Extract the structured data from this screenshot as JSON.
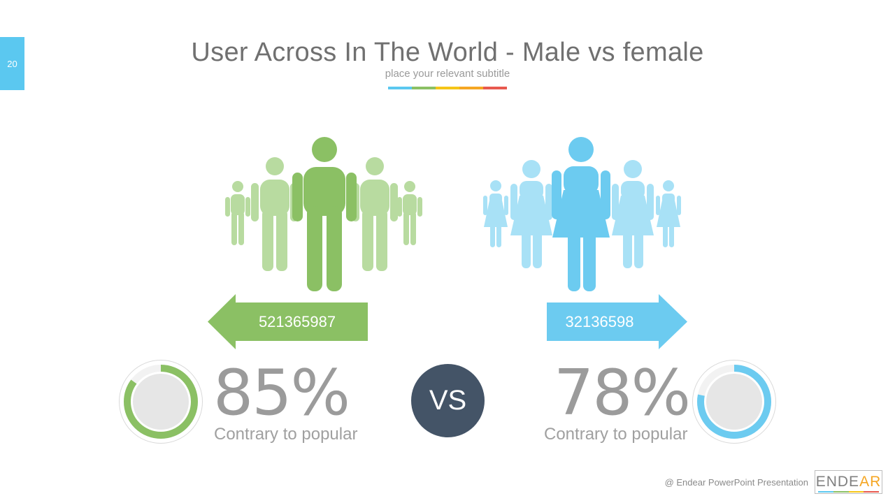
{
  "slide": {
    "page_number": "20"
  },
  "header": {
    "title": "User Across In The World - Male vs female",
    "subtitle": "place your relevant subtitle",
    "bar_colors": [
      "#5bc8f0",
      "#8bc064",
      "#f5c518",
      "#f5a623",
      "#e8594f"
    ]
  },
  "male": {
    "count": "521365987",
    "percent": "85%",
    "percent_value": 85,
    "caption": "Contrary to popular",
    "color_dark": "#8bc064",
    "color_light": "#b8dba0"
  },
  "female": {
    "count": "32136598",
    "percent": "78%",
    "percent_value": 78,
    "caption": "Contrary to popular",
    "color_dark": "#6ccbf0",
    "color_light": "#a8e1f6"
  },
  "vs_label": "VS",
  "footer": {
    "credit": "@ Endear PowerPoint Presentation",
    "logo_main": "ENDE",
    "logo_accent": "AR"
  }
}
